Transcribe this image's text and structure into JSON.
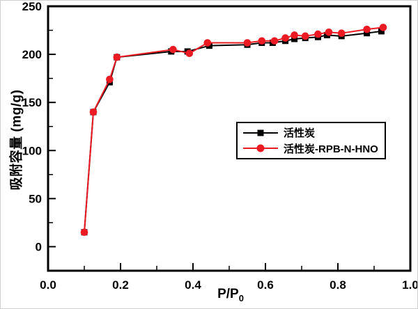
{
  "page": {
    "background": "#ffffff"
  },
  "chart_data": {
    "type": "line",
    "title": "",
    "grid": false,
    "background": "#ffffff",
    "frame_color": "#000000",
    "x_axis": {
      "label": "P/P",
      "label_sub": "0",
      "range": [
        0.0,
        1.0
      ],
      "major_ticks": [
        0.0,
        0.2,
        0.4,
        0.6,
        0.8,
        1.0
      ],
      "tick_labels": [
        "0.0",
        "0.2",
        "0.4",
        "0.6",
        "0.8",
        "1.0"
      ],
      "minor_ticks": [
        0.1,
        0.3,
        0.5,
        0.7,
        0.9
      ]
    },
    "y_axis": {
      "label": "吸附容量 (mg/g)",
      "range": [
        -25,
        250
      ],
      "major_ticks": [
        0,
        50,
        100,
        150,
        200,
        250
      ],
      "tick_labels": [
        "0",
        "50",
        "100",
        "150",
        "200",
        "250"
      ],
      "minor_ticks": [
        25,
        75,
        125,
        175,
        225
      ]
    },
    "legend": {
      "position": "center-right",
      "border": true
    },
    "series": [
      {
        "name": "活性炭",
        "color": "#000000",
        "marker": "square",
        "x": [
          0.1,
          0.125,
          0.17,
          0.19,
          0.34,
          0.385,
          0.445,
          0.55,
          0.59,
          0.62,
          0.655,
          0.68,
          0.71,
          0.745,
          0.77,
          0.81,
          0.88,
          0.92
        ],
        "y": [
          15,
          140,
          171,
          197,
          203,
          203,
          209,
          210,
          212,
          212,
          214,
          216,
          217,
          218,
          220,
          219,
          222,
          224
        ]
      },
      {
        "name": "活性炭-RPB-N-HNO",
        "color": "#ec1b23",
        "marker": "circle",
        "x": [
          0.1,
          0.125,
          0.17,
          0.19,
          0.345,
          0.39,
          0.44,
          0.55,
          0.59,
          0.625,
          0.655,
          0.68,
          0.71,
          0.745,
          0.775,
          0.81,
          0.88,
          0.925
        ],
        "y": [
          15,
          140,
          174,
          197,
          205,
          201,
          212,
          212,
          214,
          214,
          217,
          220,
          219,
          221,
          223,
          222,
          226,
          228
        ]
      }
    ]
  }
}
